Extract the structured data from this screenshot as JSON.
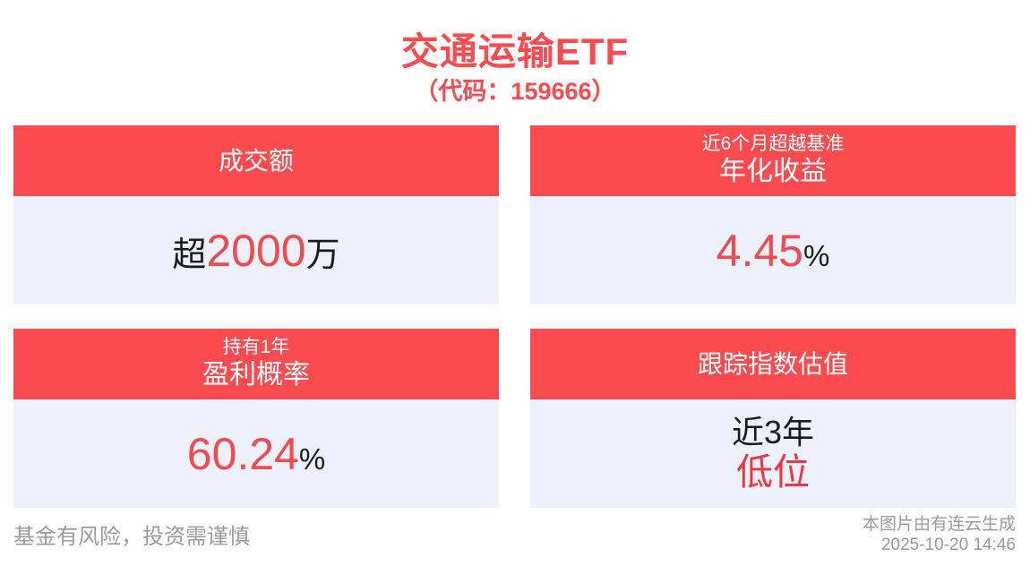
{
  "page": {
    "title": "交通运输ETF",
    "subtitle": "（代码：159666）"
  },
  "colors": {
    "accent_red": "#fc4b4f",
    "value_red": "#f4494d",
    "card_body_bg": "#ecf1fc",
    "text_dark": "#1b1b1b",
    "muted_gray": "#9b9b9b"
  },
  "cards": [
    {
      "header": "成交额",
      "value_prefix": "超",
      "value_number": "2000",
      "value_suffix": "万"
    },
    {
      "header_small": "近6个月超越基准",
      "header": "年化收益",
      "value_number": "4.45",
      "value_suffix": "%"
    },
    {
      "header_small": "持有1年",
      "header": "盈利概率",
      "value_number": "60.24",
      "value_suffix": "%"
    },
    {
      "header": "跟踪指数估值",
      "value_line1": "近3年",
      "value_line2": "低位"
    }
  ],
  "footer": {
    "disclaimer": "基金有风险，投资需谨慎",
    "source": "本图片由有连云生成",
    "timestamp": "2025-10-20 14:46"
  }
}
